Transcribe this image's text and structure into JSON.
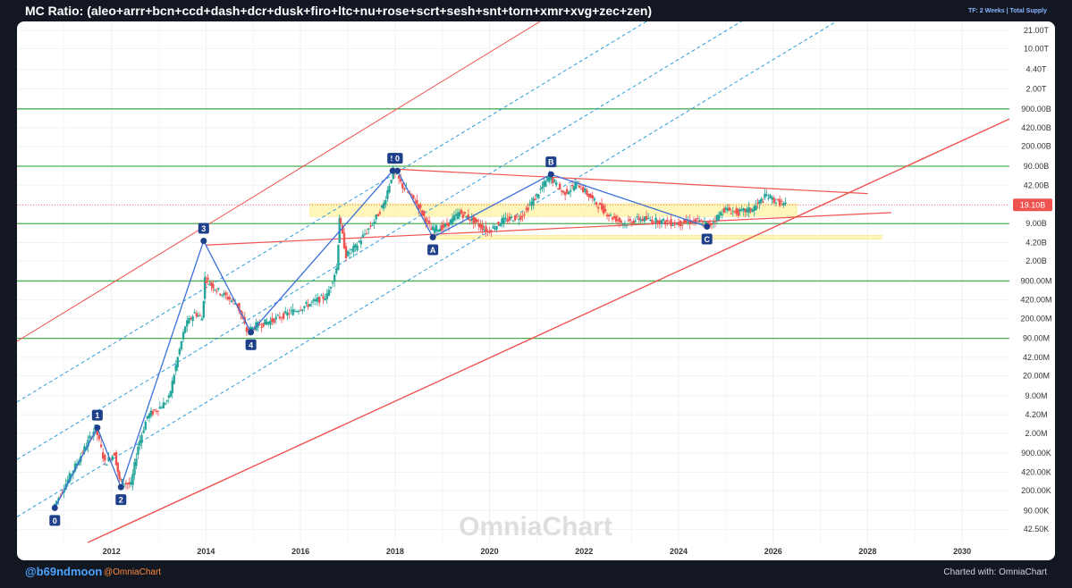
{
  "header": {
    "title": "MC Ratio: (aleo+arrr+bcn+ccd+dash+dcr+dusk+firo+ltc+nu+rose+scrt+sesh+snt+torn+xmr+xvg+zec+zen)",
    "timeframe": "TF: 2 Weeks | Total Supply"
  },
  "footer": {
    "handle": "@b69ndmoon",
    "brand_handle": "@OmniaChart",
    "charted_with": "Charted with: OmniaChart"
  },
  "watermark": "OmniaChart",
  "colors": {
    "background": "#131722",
    "panel": "#ffffff",
    "candle_up": "#26a69a",
    "candle_down": "#ef5350",
    "support_green": "#4caf50",
    "channel_red": "#ef5350",
    "channel_blue": "#2e9cdb",
    "wave_line": "#3b6fd8",
    "wave_marker": "#1e3f8a",
    "zone_yellow": "#fff59d",
    "price_badge": "#ef5350"
  },
  "chart_data": {
    "type": "candlestick",
    "scale": "log",
    "x_ticks": [
      "2012",
      "2014",
      "2016",
      "2018",
      "2020",
      "2022",
      "2024",
      "2026",
      "2028",
      "2030"
    ],
    "x_range": [
      2010.0,
      2031.0
    ],
    "y_ticks": [
      "21.00T",
      "10.00T",
      "4.40T",
      "2.00T",
      "900.00B",
      "420.00B",
      "200.00B",
      "90.00B",
      "42.00B",
      "19.10B",
      "9.00B",
      "4.20B",
      "2.00B",
      "900.00M",
      "420.00M",
      "200.00M",
      "90.00M",
      "42.00M",
      "20.00M",
      "9.00M",
      "4.20M",
      "2.00M",
      "900.00K",
      "420.00K",
      "200.00K",
      "90.00K",
      "42.50K"
    ],
    "y_range": [
      25000,
      30000000000000
    ],
    "last_price": 19100000000,
    "last_price_label": "19.10B",
    "price_path": [
      [
        2010.8,
        100000
      ],
      [
        2011.7,
        2500000
      ],
      [
        2011.9,
        600000
      ],
      [
        2012.1,
        900000
      ],
      [
        2012.2,
        300000
      ],
      [
        2012.45,
        250000
      ],
      [
        2012.6,
        1200000
      ],
      [
        2012.8,
        4000000
      ],
      [
        2013.1,
        6000000
      ],
      [
        2013.25,
        8000000
      ],
      [
        2013.4,
        30000000
      ],
      [
        2013.6,
        150000000
      ],
      [
        2013.8,
        250000000
      ],
      [
        2013.95,
        200000000
      ],
      [
        2014.0,
        1000000000
      ],
      [
        2014.3,
        600000000
      ],
      [
        2014.7,
        350000000
      ],
      [
        2014.9,
        120000000
      ],
      [
        2015.1,
        150000000
      ],
      [
        2015.4,
        180000000
      ],
      [
        2015.8,
        250000000
      ],
      [
        2016.2,
        350000000
      ],
      [
        2016.6,
        500000000
      ],
      [
        2016.8,
        1500000000
      ],
      [
        2016.85,
        12000000000
      ],
      [
        2017.0,
        2500000000
      ],
      [
        2017.2,
        3500000000
      ],
      [
        2017.4,
        6000000000
      ],
      [
        2017.6,
        10000000000
      ],
      [
        2017.8,
        20000000000
      ],
      [
        2018.0,
        75000000000
      ],
      [
        2018.2,
        40000000000
      ],
      [
        2018.5,
        20000000000
      ],
      [
        2018.8,
        7000000000
      ],
      [
        2019.1,
        8000000000
      ],
      [
        2019.4,
        14000000000
      ],
      [
        2019.7,
        10000000000
      ],
      [
        2020.0,
        6500000000
      ],
      [
        2020.3,
        10000000000
      ],
      [
        2020.7,
        12000000000
      ],
      [
        2021.0,
        25000000000
      ],
      [
        2021.3,
        60000000000
      ],
      [
        2021.6,
        30000000000
      ],
      [
        2021.9,
        45000000000
      ],
      [
        2022.3,
        20000000000
      ],
      [
        2022.6,
        12000000000
      ],
      [
        2022.9,
        9000000000
      ],
      [
        2023.2,
        11000000000
      ],
      [
        2023.6,
        10000000000
      ],
      [
        2024.0,
        9000000000
      ],
      [
        2024.4,
        10000000000
      ],
      [
        2024.7,
        8500000000
      ],
      [
        2025.0,
        16000000000
      ],
      [
        2025.3,
        14000000000
      ],
      [
        2025.6,
        16000000000
      ],
      [
        2025.9,
        28000000000
      ],
      [
        2026.1,
        22000000000
      ],
      [
        2026.3,
        19100000000
      ]
    ],
    "wave_points": [
      {
        "label": "0",
        "x": 2010.8,
        "y": 100000,
        "pos": "below"
      },
      {
        "label": "1",
        "x": 2011.7,
        "y": 2500000,
        "pos": "above"
      },
      {
        "label": "2",
        "x": 2012.2,
        "y": 230000,
        "pos": "below"
      },
      {
        "label": "3",
        "x": 2013.95,
        "y": 4500000000,
        "pos": "above"
      },
      {
        "label": "4",
        "x": 2014.95,
        "y": 115000000,
        "pos": "below"
      },
      {
        "label": "5",
        "x": 2017.95,
        "y": 75000000000,
        "pos": "above"
      },
      {
        "label": "0",
        "x": 2018.05,
        "y": 75000000000,
        "pos": "above"
      },
      {
        "label": "A",
        "x": 2018.8,
        "y": 5200000000,
        "pos": "below"
      },
      {
        "label": "B",
        "x": 2021.3,
        "y": 65000000000,
        "pos": "above"
      },
      {
        "label": "C",
        "x": 2024.6,
        "y": 8000000000,
        "pos": "below"
      }
    ],
    "horizontal_levels": [
      900000000000,
      90000000000,
      9000000000,
      900000000,
      90000000
    ],
    "zones": [
      {
        "x": [
          2016.2,
          2026.5
        ],
        "y": [
          12000000000,
          20000000000
        ]
      },
      {
        "x": [
          2018.8,
          2028.3
        ],
        "y": [
          4800000000,
          5600000000
        ]
      }
    ],
    "trend_lines": [
      {
        "from": [
          2014.0,
          3800000000
        ],
        "to": [
          2028.5,
          14000000000
        ]
      },
      {
        "from": [
          2018.0,
          80000000000
        ],
        "to": [
          2028.0,
          30000000000
        ]
      }
    ],
    "channel": {
      "lower": {
        "from": [
          2011.5,
          25000
        ],
        "to": [
          2031.0,
          600000000000
        ]
      },
      "upper": {
        "from": [
          2010.0,
          80000000
        ],
        "to": [
          2031.0,
          3000000000000000000
        ]
      },
      "middles": [
        {
          "from": [
            2010.0,
            70000
          ],
          "to": [
            2031.0,
            2000000000000000
          ]
        },
        {
          "from": [
            2010.0,
            700000
          ],
          "to": [
            2031.0,
            20000000000000000
          ]
        },
        {
          "from": [
            2010.0,
            7000000
          ],
          "to": [
            2031.0,
            200000000000000000
          ]
        }
      ]
    }
  }
}
